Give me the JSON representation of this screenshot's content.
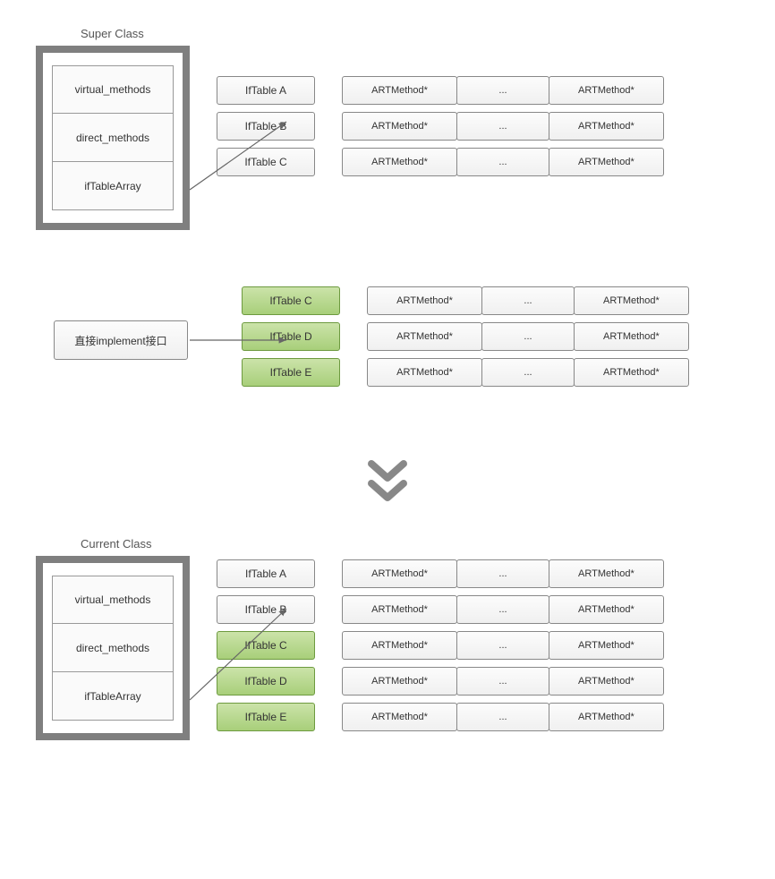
{
  "colors": {
    "page_bg": "#f6f1e9",
    "canvas_bg": "#ffffff",
    "box_border": "#888888",
    "class_border": "#7f7f7f",
    "cell_bg_top": "#fcfcfc",
    "cell_bg_bot": "#f0f0f0",
    "green_top": "#cbe3a9",
    "green_bot": "#a8cf7a",
    "green_border": "#6d9a3f",
    "text": "#333333",
    "arrow": "#666666",
    "chevron": "#888888"
  },
  "typography": {
    "font_family": "Arial, Helvetica, sans-serif",
    "title_size_pt": 10,
    "cell_size_pt": 9
  },
  "super_class": {
    "title": "Super Class",
    "cells": [
      "virtual_methods",
      "direct_methods",
      "ifTableArray"
    ],
    "iftables": [
      {
        "label": "IfTable A",
        "green": false
      },
      {
        "label": "IfTable B",
        "green": false
      },
      {
        "label": "IfTable C",
        "green": false
      }
    ],
    "method_rows": [
      [
        "ARTMethod*",
        "...",
        "ARTMethod*"
      ],
      [
        "ARTMethod*",
        "...",
        "ARTMethod*"
      ],
      [
        "ARTMethod*",
        "...",
        "ARTMethod*"
      ]
    ]
  },
  "direct_impl": {
    "label": "直接implement接口",
    "iftables": [
      {
        "label": "IfTable C",
        "green": true
      },
      {
        "label": "IfTable D",
        "green": true
      },
      {
        "label": "IfTable E",
        "green": true
      }
    ],
    "method_rows": [
      [
        "ARTMethod*",
        "...",
        "ARTMethod*"
      ],
      [
        "ARTMethod*",
        "...",
        "ARTMethod*"
      ],
      [
        "ARTMethod*",
        "...",
        "ARTMethod*"
      ]
    ]
  },
  "current_class": {
    "title": "Current Class",
    "cells": [
      "virtual_methods",
      "direct_methods",
      "ifTableArray"
    ],
    "iftables": [
      {
        "label": "IfTable A",
        "green": false
      },
      {
        "label": "IfTable B",
        "green": false
      },
      {
        "label": "IfTable C",
        "green": true
      },
      {
        "label": "IfTable D",
        "green": true
      },
      {
        "label": "IfTable E",
        "green": true
      }
    ],
    "method_rows": [
      [
        "ARTMethod*",
        "...",
        "ARTMethod*"
      ],
      [
        "ARTMethod*",
        "...",
        "ARTMethod*"
      ],
      [
        "ARTMethod*",
        "...",
        "ARTMethod*"
      ],
      [
        "ARTMethod*",
        "...",
        "ARTMethod*"
      ],
      [
        "ARTMethod*",
        "...",
        "ARTMethod*"
      ]
    ]
  }
}
